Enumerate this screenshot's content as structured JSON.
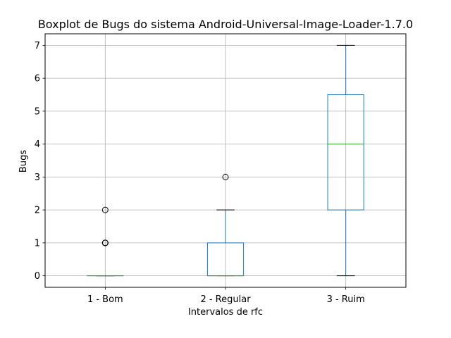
{
  "chart_data": {
    "type": "box",
    "title": "Boxplot de Bugs do sistema Android-Universal-Image-Loader-1.7.0",
    "xlabel": "Intervalos de rfc",
    "ylabel": "Bugs",
    "categories": [
      "1 - Bom",
      "2 - Regular",
      "3 - Ruim"
    ],
    "ylim": [
      -0.35,
      7.35
    ],
    "yticks": [
      0,
      1,
      2,
      3,
      4,
      5,
      6,
      7
    ],
    "grid": true,
    "boxes": [
      {
        "category": "1 - Bom",
        "whisker_low": 0,
        "q1": 0,
        "median": 0,
        "q3": 0,
        "whisker_high": 0,
        "outliers": [
          1,
          1,
          1,
          1,
          2
        ]
      },
      {
        "category": "2 - Regular",
        "whisker_low": 0,
        "q1": 0,
        "median": 0,
        "q3": 1,
        "whisker_high": 2,
        "outliers": [
          3
        ]
      },
      {
        "category": "3 - Ruim",
        "whisker_low": 0,
        "q1": 2,
        "median": 4,
        "q3": 5.5,
        "whisker_high": 7,
        "outliers": []
      }
    ],
    "colors": {
      "box": "#1f77b4",
      "median": "#2ca02c",
      "whisker": "#1f77b4",
      "cap": "#000000",
      "grid": "#b0b0b0",
      "outlier": "#000000"
    }
  }
}
